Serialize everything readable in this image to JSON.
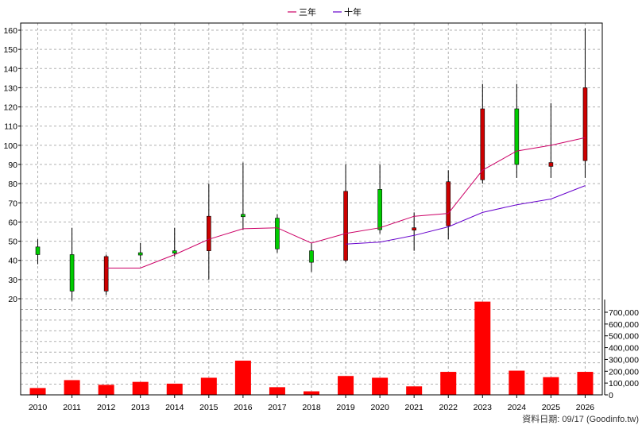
{
  "chart_data": {
    "type": "candlestick",
    "title": "",
    "legend": {
      "position": "top-center",
      "items": [
        {
          "label": "三年",
          "color": "#cc0066"
        },
        {
          "label": "十年",
          "color": "#6600cc"
        }
      ]
    },
    "x": [
      "2010",
      "2011",
      "2012",
      "2013",
      "2014",
      "2015",
      "2016",
      "2017",
      "2018",
      "2019",
      "2020",
      "2021",
      "2022",
      "2023",
      "2024",
      "2025",
      "2026"
    ],
    "price_axis": {
      "side": "left",
      "ylim": [
        20,
        165
      ],
      "ticks": [
        20,
        30,
        40,
        50,
        60,
        70,
        80,
        90,
        100,
        110,
        120,
        130,
        140,
        150,
        160
      ]
    },
    "volume_axis": {
      "side": "right",
      "ylim": [
        0,
        800000
      ],
      "ticks": [
        0,
        100000,
        200000,
        300000,
        400000,
        500000,
        600000,
        700000
      ],
      "tick_labels": [
        "0",
        "100,000",
        "200,000",
        "300,000",
        "400,000",
        "500,000",
        "600,000",
        "700,000"
      ]
    },
    "candles": [
      {
        "open": 43,
        "close": 47,
        "high": 51,
        "low": 38
      },
      {
        "open": 24,
        "close": 43,
        "high": 57,
        "low": 19
      },
      {
        "open": 42,
        "close": 24,
        "high": 43,
        "low": 22
      },
      {
        "open": 43,
        "close": 44,
        "high": 49,
        "low": 40
      },
      {
        "open": 44,
        "close": 45,
        "high": 57,
        "low": 42
      },
      {
        "open": 63,
        "close": 45,
        "high": 80,
        "low": 30
      },
      {
        "open": 63,
        "close": 64,
        "high": 91,
        "low": 56
      },
      {
        "open": 46,
        "close": 62,
        "high": 64,
        "low": 44
      },
      {
        "open": 39,
        "close": 45,
        "high": 49,
        "low": 34
      },
      {
        "open": 76,
        "close": 40,
        "high": 90,
        "low": 39
      },
      {
        "open": 56,
        "close": 77,
        "high": 90,
        "low": 54
      },
      {
        "open": 57,
        "close": 56,
        "high": 65,
        "low": 45
      },
      {
        "open": 81,
        "close": 58,
        "high": 87,
        "low": 51
      },
      {
        "open": 119,
        "close": 82,
        "high": 132,
        "low": 80
      },
      {
        "open": 90,
        "close": 119,
        "high": 132,
        "low": 83
      },
      {
        "open": 91,
        "close": 89,
        "high": 122,
        "low": 83
      },
      {
        "open": 130,
        "close": 92,
        "high": 161,
        "low": 83
      }
    ],
    "candle_colors": {
      "up": "#00cc00",
      "down": "#cc0000",
      "wick": "#000000"
    },
    "series": [
      {
        "name": "三年",
        "color": "#cc0066",
        "values": [
          null,
          null,
          36,
          36,
          43,
          51,
          56.5,
          57,
          49,
          54,
          57,
          63,
          64.5,
          87,
          97,
          100,
          104
        ]
      },
      {
        "name": "十年",
        "color": "#6600cc",
        "values": [
          null,
          null,
          null,
          null,
          null,
          null,
          null,
          null,
          null,
          48.5,
          49.5,
          53,
          57.5,
          65,
          69,
          72,
          79
        ]
      }
    ],
    "volume": {
      "color": "#ff0000",
      "values": [
        58000,
        125000,
        85000,
        110000,
        95000,
        145000,
        290000,
        65000,
        30000,
        160000,
        145000,
        72000,
        195000,
        790000,
        205000,
        150000,
        195000
      ]
    },
    "grid": true
  },
  "footer": {
    "text": "資料日期: 09/17  (Goodinfo.tw)"
  }
}
